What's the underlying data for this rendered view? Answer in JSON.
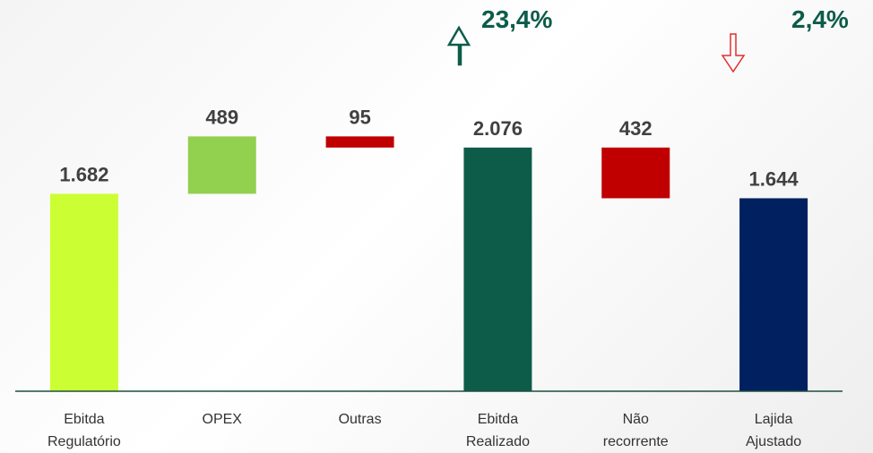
{
  "chart_data": {
    "type": "waterfall",
    "categories": [
      "Ebitda Regulatório",
      "OPEX",
      "Outras",
      "Ebitda Realizado",
      "Não recorrente",
      "Lajida Ajustado"
    ],
    "values": [
      1682,
      489,
      -95,
      2076,
      -432,
      1644
    ],
    "value_labels": [
      "1.682",
      "489",
      "95",
      "2.076",
      "432",
      "1.644"
    ],
    "measure": [
      "absolute",
      "relative",
      "relative",
      "absolute",
      "relative",
      "absolute"
    ],
    "colors": [
      "#ccff33",
      "#92d050",
      "#c00000",
      "#0d5c4a",
      "#c00000",
      "#002060"
    ],
    "ylim": [
      0,
      2250
    ],
    "annotations": [
      {
        "text": "23,4%",
        "color": "#0d5c4a"
      },
      {
        "text": "2,4%",
        "color": "#0d5c4a"
      }
    ]
  }
}
